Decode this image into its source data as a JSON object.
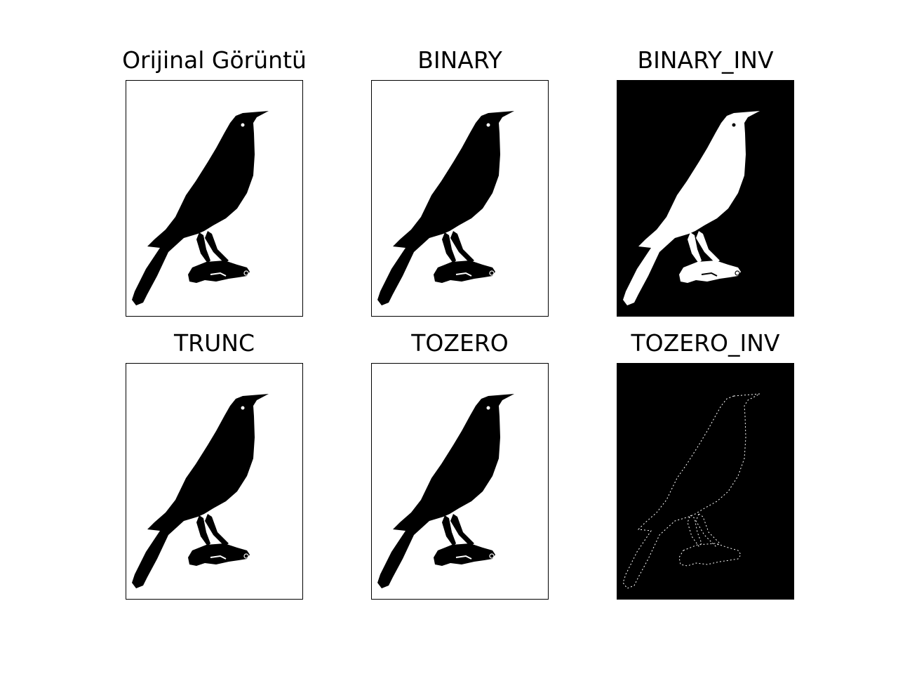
{
  "panels": [
    {
      "title": "Orijinal Görüntü",
      "background": "#ffffff",
      "bird": "#000000",
      "eye": "#ffffff",
      "style": "solid"
    },
    {
      "title": "BINARY",
      "background": "#ffffff",
      "bird": "#000000",
      "eye": "#ffffff",
      "style": "solid"
    },
    {
      "title": "BINARY_INV",
      "background": "#000000",
      "bird": "#ffffff",
      "eye": "#000000",
      "style": "solid"
    },
    {
      "title": "TRUNC",
      "background": "#ffffff",
      "bird": "#000000",
      "eye": "#ffffff",
      "style": "solid"
    },
    {
      "title": "TOZERO",
      "background": "#ffffff",
      "bird": "#000000",
      "eye": "#ffffff",
      "style": "solid"
    },
    {
      "title": "TOZERO_INV",
      "background": "#000000",
      "bird": "#ffffff",
      "eye": "#000000",
      "style": "outline"
    }
  ]
}
